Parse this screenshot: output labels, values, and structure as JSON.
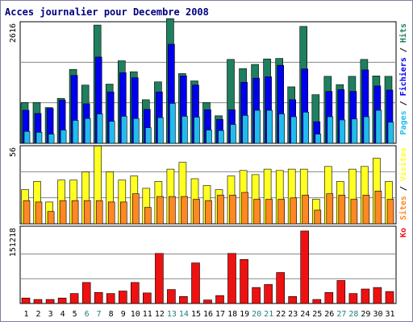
{
  "colors": {
    "hits": "#1f7f5f",
    "files": "#0000ee",
    "pages": "#22bbee",
    "visits": "#ffff22",
    "sites": "#ff8822",
    "kb": "#ee1111",
    "weekend": "#1f7f7f",
    "weekday": "#000000",
    "title": "#00007f",
    "frame": "#000000"
  },
  "chart_data": {
    "type": "bar",
    "title": "Acces journalier pour Decembre 2008",
    "categories": [
      "1",
      "2",
      "3",
      "4",
      "5",
      "6",
      "7",
      "8",
      "9",
      "10",
      "11",
      "12",
      "13",
      "14",
      "15",
      "16",
      "17",
      "18",
      "19",
      "20",
      "21",
      "22",
      "23",
      "24",
      "25",
      "26",
      "27",
      "28",
      "29",
      "30",
      "31"
    ],
    "weekend_days": [
      "6",
      "7",
      "13",
      "14",
      "20",
      "21",
      "27",
      "28"
    ],
    "panels": [
      {
        "id": "top",
        "max_label": "2616",
        "ymax": 2616,
        "right_label_parts": [
          {
            "text": "Pages",
            "color": "#22bbee"
          },
          {
            "text": " / ",
            "color": "#000000"
          },
          {
            "text": "Fichiers",
            "color": "#0000ee"
          },
          {
            "text": " / ",
            "color": "#000000"
          },
          {
            "text": "Hits",
            "color": "#1f7f5f"
          }
        ],
        "series": [
          {
            "name": "Hits",
            "color": "#1f7f5f",
            "values": [
              890,
              890,
              780,
              980,
              1610,
              1270,
              2580,
              1290,
              1800,
              1560,
              950,
              1340,
              2720,
              1520,
              1360,
              890,
              600,
              1830,
              1630,
              1720,
              1840,
              1850,
              1230,
              2550,
              1060,
              1460,
              1280,
              1460,
              1830,
              1470,
              1460
            ]
          },
          {
            "name": "Fichiers",
            "color": "#0000ee",
            "values": [
              720,
              650,
              760,
              940,
              1480,
              860,
              1880,
              1120,
              1540,
              1430,
              740,
              1120,
              2160,
              1470,
              1270,
              730,
              520,
              730,
              1330,
              1420,
              1450,
              1700,
              950,
              1620,
              470,
              1130,
              1170,
              1130,
              1600,
              1250,
              1160
            ]
          },
          {
            "name": "Pages",
            "color": "#22bbee",
            "values": [
              260,
              240,
              200,
              290,
              500,
              540,
              640,
              480,
              590,
              540,
              340,
              560,
              870,
              590,
              570,
              290,
              280,
              410,
              610,
              720,
              720,
              640,
              580,
              680,
              200,
              580,
              510,
              530,
              580,
              720,
              460
            ]
          }
        ]
      },
      {
        "id": "middle",
        "max_label": "56",
        "ymax": 56,
        "right_label_parts": [
          {
            "text": "Sites",
            "color": "#ff8822"
          },
          {
            "text": " / ",
            "color": "#000000"
          },
          {
            "text": "Visites",
            "color": "#ffff22"
          }
        ],
        "series": [
          {
            "name": "Visites",
            "color": "#ffff22",
            "values": [
              25,
              31,
              16,
              32,
              32,
              38,
              57,
              38,
              32,
              35,
              26,
              31,
              40,
              45,
              33,
              28,
              25,
              35,
              39,
              36,
              40,
              39,
              40,
              40,
              18,
              42,
              31,
              40,
              42,
              48,
              31
            ]
          },
          {
            "name": "Sites",
            "color": "#ff8822",
            "values": [
              17,
              16,
              9,
              17,
              17,
              17,
              17,
              16,
              16,
              22,
              12,
              20,
              20,
              20,
              18,
              17,
              21,
              21,
              23,
              18,
              18,
              18,
              19,
              21,
              10,
              22,
              21,
              18,
              21,
              24,
              18
            ]
          }
        ]
      },
      {
        "id": "bottom",
        "max_label": "151218",
        "ymax": 151218,
        "right_label_parts": [
          {
            "text": "Ko",
            "color": "#ee1111"
          }
        ],
        "series": [
          {
            "name": "Ko",
            "color": "#ee1111",
            "values": [
              11000,
              8000,
              8000,
              11000,
              20000,
              42000,
              22000,
              20000,
              25000,
              42000,
              21000,
              100000,
              28000,
              14000,
              81000,
              7000,
              16000,
              100000,
              88000,
              32000,
              38000,
              62000,
              14000,
              145000,
              8000,
              22000,
              46000,
              20000,
              29000,
              32000,
              24000
            ]
          }
        ]
      }
    ]
  }
}
